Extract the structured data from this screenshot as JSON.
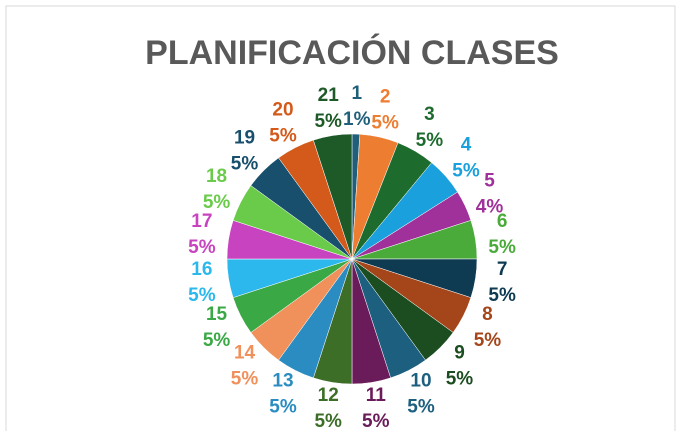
{
  "chart_data": {
    "type": "pie",
    "title": "PLANIFICACIÓN CLASES",
    "categories": [
      "1",
      "2",
      "3",
      "4",
      "5",
      "6",
      "7",
      "8",
      "9",
      "10",
      "11",
      "12",
      "13",
      "14",
      "15",
      "16",
      "17",
      "18",
      "19",
      "20",
      "21"
    ],
    "values": [
      1,
      5,
      5,
      5,
      4,
      5,
      5,
      5,
      5,
      5,
      5,
      5,
      5,
      5,
      5,
      5,
      5,
      5,
      5,
      5,
      5
    ],
    "value_labels": [
      "1%",
      "5%",
      "5%",
      "5%",
      "4%",
      "5%",
      "5%",
      "5%",
      "5%",
      "5%",
      "5%",
      "5%",
      "5%",
      "5%",
      "5%",
      "5%",
      "5%",
      "5%",
      "5%",
      "5%",
      "5%"
    ],
    "colors": [
      "#1f5f7a",
      "#ed7d31",
      "#1e6b2e",
      "#1aa0dc",
      "#a0309a",
      "#4aab3a",
      "#0e3a52",
      "#a5461a",
      "#1b4d20",
      "#1c5f7f",
      "#6a1b5a",
      "#3c6e28",
      "#2a8cc0",
      "#f0905a",
      "#3aa844",
      "#2cb8ec",
      "#c843c0",
      "#6acb4a",
      "#174f6c",
      "#d35a1a",
      "#1d5a28"
    ]
  }
}
